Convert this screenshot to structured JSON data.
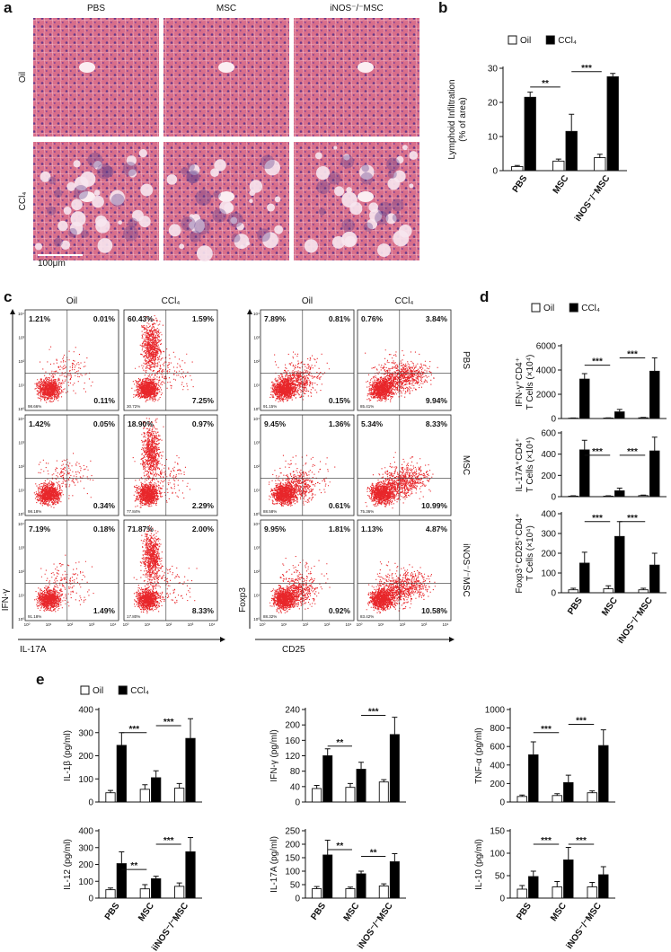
{
  "panel_labels": [
    "a",
    "b",
    "c",
    "d",
    "e"
  ],
  "panel_a": {
    "columns": [
      "PBS",
      "MSC",
      "iNOS⁻/⁻MSC"
    ],
    "rows": [
      "Oil",
      "CCl₄"
    ],
    "scale_bar": "100μm"
  },
  "panel_c": {
    "columns": [
      "Oil",
      "CCl₄",
      "Oil",
      "CCl₄"
    ],
    "rows": [
      "PBS",
      "MSC",
      "iNOS⁻/⁻MSC"
    ],
    "axes": [
      {
        "y": "IFN-γ",
        "x": "IL-17A"
      },
      {
        "y": "Foxp3",
        "x": "CD25"
      }
    ],
    "log_ticks": [
      "10⁰",
      "10¹",
      "10²",
      "10³",
      "10⁴"
    ],
    "plots": [
      [
        {
          "ul": "1.21%",
          "ur": "0.01%",
          "lr": "0.11%",
          "ll": "98.66%"
        },
        {
          "ul": "60.43%",
          "ur": "1.59%",
          "lr": "7.25%",
          "ll": "30.72%"
        },
        {
          "ul": "7.89%",
          "ur": "0.81%",
          "lr": "0.15%",
          "ll": "91.15%"
        },
        {
          "ul": "0.76%",
          "ur": "3.84%",
          "lr": "9.94%",
          "ll": "85.41%"
        }
      ],
      [
        {
          "ul": "1.42%",
          "ur": "0.05%",
          "lr": "0.34%",
          "ll": "98.18%"
        },
        {
          "ul": "18.90%",
          "ur": "0.97%",
          "lr": "2.29%",
          "ll": "77.84%"
        },
        {
          "ul": "9.45%",
          "ur": "1.36%",
          "lr": "0.61%",
          "ll": "88.58%"
        },
        {
          "ul": "5.34%",
          "ur": "8.33%",
          "lr": "10.99%",
          "ll": "75.36%"
        }
      ],
      [
        {
          "ul": "7.19%",
          "ur": "0.18%",
          "lr": "1.49%",
          "ll": "91.18%"
        },
        {
          "ul": "71.87%",
          "ur": "2.00%",
          "lr": "8.33%",
          "ll": "17.80%"
        },
        {
          "ul": "9.95%",
          "ur": "1.81%",
          "lr": "0.92%",
          "ll": "88.32%"
        },
        {
          "ul": "1.13%",
          "ur": "4.87%",
          "lr": "10.58%",
          "ll": "83.42%"
        }
      ]
    ]
  },
  "chart_data": [
    {
      "type": "bar",
      "y_label": [
        "Lymphoid Infiltration",
        "(% of area)"
      ],
      "categories": [
        "PBS",
        "MSC",
        "iNOS⁻/⁻MSC"
      ],
      "series": [
        {
          "name": "Oil",
          "color": "#ffffff",
          "values": [
            1.2,
            2.8,
            3.8
          ],
          "errors": [
            0.3,
            0.6,
            1.0
          ]
        },
        {
          "name": "CCl₄",
          "color": "#000000",
          "values": [
            21.5,
            11.5,
            27.5
          ],
          "errors": [
            1.5,
            5.0,
            1.0
          ]
        }
      ],
      "ylim": [
        0,
        30
      ],
      "yticks": [
        0,
        10,
        20,
        30
      ],
      "significance": [
        {
          "label": "**",
          "y": 24.5
        },
        {
          "label": "***",
          "y": 29
        }
      ]
    },
    {
      "type": "bar",
      "y_label": [
        "IFN-γ⁺CD4⁺",
        "T Cells (×10⁴)"
      ],
      "series": [
        {
          "name": "Oil",
          "color": "#ffffff",
          "values": [
            30,
            40,
            60
          ],
          "errors": [
            20,
            20,
            30
          ]
        },
        {
          "name": "CCl₄",
          "color": "#000000",
          "values": [
            3250,
            550,
            3900
          ],
          "errors": [
            450,
            200,
            1100
          ]
        }
      ],
      "ylim": [
        0,
        6000
      ],
      "yticks": [
        0,
        2000,
        4000,
        6000
      ],
      "significance": [
        {
          "label": "***",
          "y": 4400
        },
        {
          "label": "***",
          "y": 5000
        }
      ]
    },
    {
      "type": "bar",
      "y_label": [
        "IL-17A⁺CD4⁺",
        "T Cells (×10⁴)"
      ],
      "series": [
        {
          "color": "#ffffff",
          "values": [
            5,
            5,
            10
          ],
          "errors": [
            3,
            3,
            5
          ]
        },
        {
          "color": "#000000",
          "values": [
            440,
            55,
            430
          ],
          "errors": [
            90,
            25,
            130
          ]
        }
      ],
      "ylim": [
        0,
        600
      ],
      "yticks": [
        0,
        200,
        400,
        600
      ],
      "significance": [
        {
          "label": "***",
          "y": 390
        },
        {
          "label": "***",
          "y": 390
        }
      ]
    },
    {
      "type": "bar",
      "y_label": [
        "Foxp3⁺CD25⁺CD4⁺",
        "T Cells (×10⁴)"
      ],
      "categories": [
        "PBS",
        "MSC",
        "iNOS⁻/⁻MSC"
      ],
      "series": [
        {
          "color": "#ffffff",
          "values": [
            15,
            20,
            15
          ],
          "errors": [
            8,
            15,
            8
          ]
        },
        {
          "color": "#000000",
          "values": [
            150,
            285,
            140
          ],
          "errors": [
            55,
            75,
            60
          ]
        }
      ],
      "ylim": [
        0,
        400
      ],
      "yticks": [
        0,
        100,
        200,
        300,
        400
      ],
      "significance": [
        {
          "label": "***",
          "y": 360
        },
        {
          "label": "***",
          "y": 360
        }
      ]
    },
    {
      "type": "bar",
      "y_label": [
        "IL-1β (pg/ml)"
      ],
      "series": [
        {
          "name": "Oil",
          "color": "#ffffff",
          "values": [
            40,
            55,
            60
          ],
          "errors": [
            10,
            20,
            20
          ]
        },
        {
          "name": "CCl₄",
          "color": "#000000",
          "values": [
            245,
            105,
            275
          ],
          "errors": [
            55,
            30,
            85
          ]
        }
      ],
      "ylim": [
        0,
        400
      ],
      "yticks": [
        0,
        100,
        200,
        300,
        400
      ],
      "significance": [
        {
          "label": "***",
          "y": 300
        },
        {
          "label": "***",
          "y": 330
        }
      ]
    },
    {
      "type": "bar",
      "y_label": [
        "IFN-γ (pg/ml)"
      ],
      "series": [
        {
          "color": "#ffffff",
          "values": [
            35,
            38,
            52
          ],
          "errors": [
            8,
            10,
            6
          ]
        },
        {
          "color": "#000000",
          "values": [
            120,
            85,
            175
          ],
          "errors": [
            18,
            18,
            45
          ]
        }
      ],
      "ylim": [
        0,
        240
      ],
      "yticks": [
        0,
        40,
        80,
        120,
        160,
        200,
        240
      ],
      "significance": [
        {
          "label": "**",
          "y": 145
        },
        {
          "label": "***",
          "y": 225
        }
      ]
    },
    {
      "type": "bar",
      "y_label": [
        "TNF-α (pg/ml)"
      ],
      "series": [
        {
          "color": "#ffffff",
          "values": [
            60,
            70,
            100
          ],
          "errors": [
            15,
            20,
            20
          ]
        },
        {
          "color": "#000000",
          "values": [
            510,
            210,
            610
          ],
          "errors": [
            140,
            80,
            170
          ]
        }
      ],
      "ylim": [
        0,
        1000
      ],
      "yticks": [
        0,
        200,
        400,
        600,
        800,
        1000
      ],
      "significance": [
        {
          "label": "***",
          "y": 750
        },
        {
          "label": "***",
          "y": 840
        }
      ]
    },
    {
      "type": "bar",
      "y_label": [
        "IL-12 (pg/ml)"
      ],
      "categories": [
        "PBS",
        "MSC",
        "iiNOS⁻/⁻MSC"
      ],
      "series": [
        {
          "color": "#ffffff",
          "values": [
            50,
            55,
            70
          ],
          "errors": [
            10,
            25,
            20
          ]
        },
        {
          "color": "#000000",
          "values": [
            205,
            115,
            275
          ],
          "errors": [
            70,
            15,
            85
          ]
        }
      ],
      "ylim": [
        0,
        400
      ],
      "yticks": [
        0,
        100,
        200,
        300,
        400
      ],
      "significance": [
        {
          "label": "**",
          "y": 170
        },
        {
          "label": "***",
          "y": 320
        }
      ]
    },
    {
      "type": "bar",
      "y_label": [
        "IL-17A (pg/ml)"
      ],
      "categories": [
        "PBS",
        "MSC",
        "iNOS⁻/⁻MSC"
      ],
      "series": [
        {
          "color": "#ffffff",
          "values": [
            35,
            35,
            45
          ],
          "errors": [
            8,
            6,
            8
          ]
        },
        {
          "color": "#000000",
          "values": [
            160,
            90,
            135
          ],
          "errors": [
            55,
            10,
            30
          ]
        }
      ],
      "ylim": [
        0,
        250
      ],
      "yticks": [
        0,
        50,
        100,
        150,
        200,
        250
      ],
      "significance": [
        {
          "label": "**",
          "y": 180
        },
        {
          "label": "**",
          "y": 155
        }
      ]
    },
    {
      "type": "bar",
      "y_label": [
        "IL-10 (pg/ml)"
      ],
      "categories": [
        "PBS",
        "MSC",
        "iNOS⁻/⁻MSC"
      ],
      "series": [
        {
          "color": "#ffffff",
          "values": [
            20,
            25,
            25
          ],
          "errors": [
            8,
            12,
            10
          ]
        },
        {
          "color": "#000000",
          "values": [
            48,
            85,
            52
          ],
          "errors": [
            12,
            28,
            18
          ]
        }
      ],
      "ylim": [
        0,
        150
      ],
      "yticks": [
        0,
        50,
        100,
        150
      ],
      "significance": [
        {
          "label": "***",
          "y": 120
        },
        {
          "label": "***",
          "y": 120
        }
      ]
    }
  ]
}
